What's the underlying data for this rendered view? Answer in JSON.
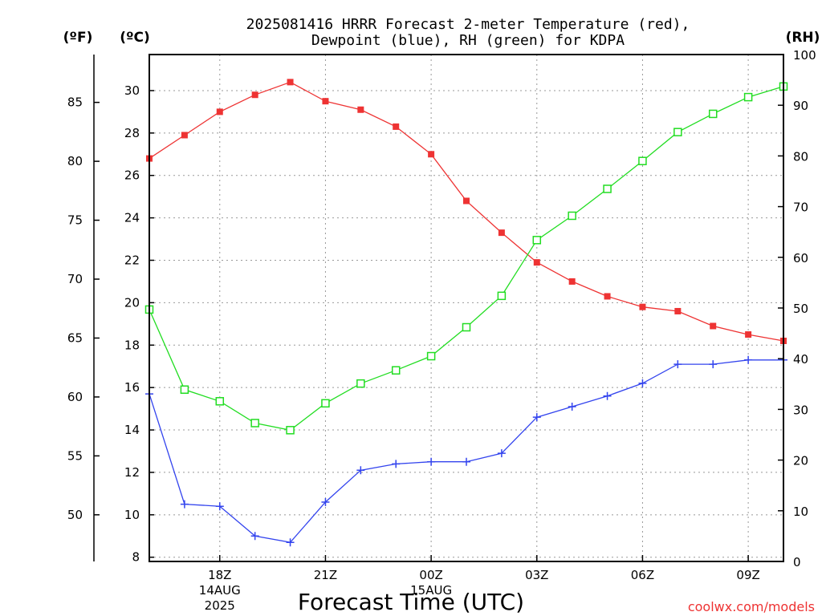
{
  "chart_data": {
    "type": "line",
    "title": "2025081416 HRRR Forecast 2-meter Temperature (red),",
    "subtitle": "Dewpoint (blue), RH (green) for KDPA",
    "xlabel": "Forecast Time (UTC)",
    "axis_unit_labels": {
      "fahrenheit": "(ºF)",
      "celsius": "(ºC)",
      "rh": "(RH)"
    },
    "credit": "coolwx.com/models",
    "x": [
      16,
      17,
      18,
      19,
      20,
      21,
      22,
      23,
      24,
      25,
      26,
      27,
      28,
      29,
      30,
      31,
      32,
      33,
      34
    ],
    "xlim": [
      16,
      34
    ],
    "x_ticks": [
      {
        "x": 18,
        "lines": [
          "18Z",
          "14AUG",
          "2025"
        ]
      },
      {
        "x": 21,
        "lines": [
          "21Z"
        ]
      },
      {
        "x": 24,
        "lines": [
          "00Z",
          "15AUG"
        ]
      },
      {
        "x": 27,
        "lines": [
          "03Z"
        ]
      },
      {
        "x": 30,
        "lines": [
          "06Z"
        ]
      },
      {
        "x": 33,
        "lines": [
          "09Z"
        ]
      }
    ],
    "y_celsius": {
      "ylim": [
        7.8,
        31.7
      ],
      "ticks": [
        8,
        10,
        12,
        14,
        16,
        18,
        20,
        22,
        24,
        26,
        28,
        30
      ]
    },
    "y_fahrenheit": {
      "ticks": [
        50,
        55,
        60,
        65,
        70,
        75,
        80,
        85
      ]
    },
    "y_rh": {
      "ylim": [
        0,
        100
      ],
      "ticks": [
        0,
        10,
        20,
        30,
        40,
        50,
        60,
        70,
        80,
        90,
        100
      ]
    },
    "grid": true,
    "series": [
      {
        "name": "Temperature",
        "axis": "celsius",
        "color": "#ee3333",
        "marker": "filled-square",
        "values": [
          26.8,
          27.9,
          29.0,
          29.8,
          30.4,
          29.5,
          29.1,
          28.3,
          27.0,
          24.8,
          23.3,
          21.9,
          21.0,
          20.3,
          19.8,
          19.6,
          18.9,
          18.5,
          18.2
        ]
      },
      {
        "name": "Dewpoint",
        "axis": "celsius",
        "color": "#3344ee",
        "marker": "plus",
        "values": [
          15.7,
          10.5,
          10.4,
          9.0,
          8.7,
          10.6,
          12.1,
          12.4,
          12.5,
          12.5,
          12.9,
          14.6,
          15.1,
          15.6,
          16.2,
          17.1,
          17.1,
          17.3,
          17.3
        ]
      },
      {
        "name": "RH",
        "axis": "rh",
        "color": "#22dd22",
        "marker": "open-square",
        "values": [
          49.7,
          33.9,
          31.6,
          27.3,
          25.9,
          31.2,
          35.1,
          37.7,
          40.5,
          46.2,
          52.4,
          63.4,
          68.2,
          73.5,
          79.0,
          84.7,
          88.3,
          91.6,
          93.7
        ]
      }
    ]
  }
}
